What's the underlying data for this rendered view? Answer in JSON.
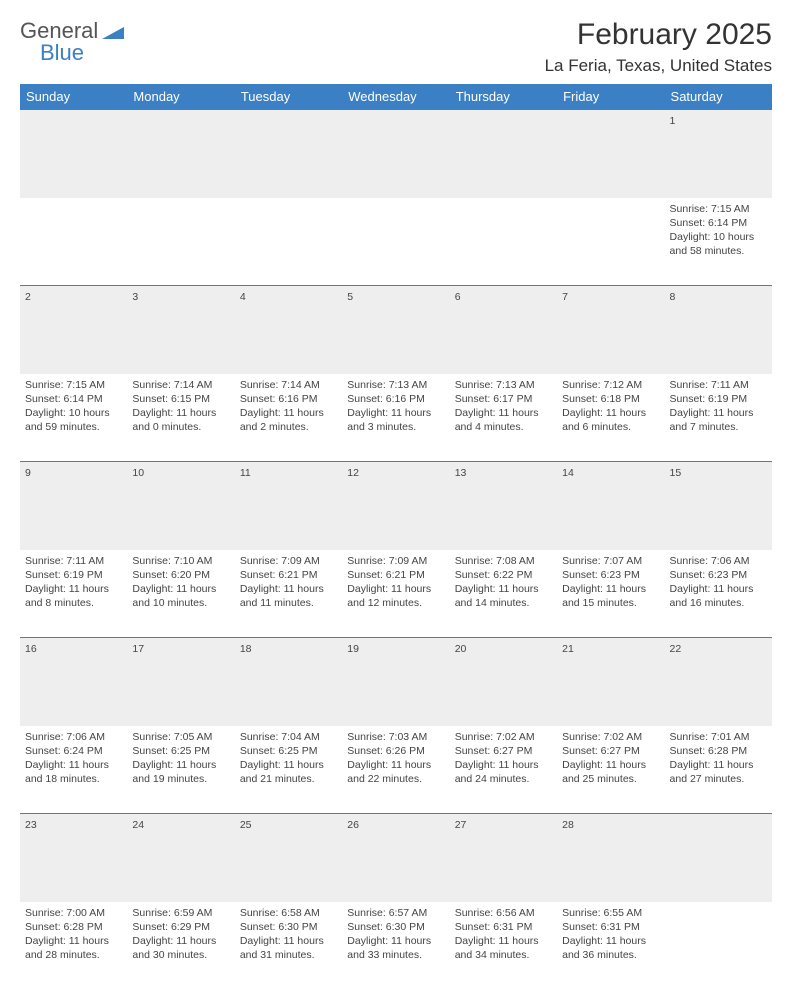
{
  "logo": {
    "text_gray": "General",
    "text_blue": "Blue",
    "triangle_color": "#3b7fc4"
  },
  "header": {
    "month": "February 2025",
    "location": "La Feria, Texas, United States"
  },
  "colors": {
    "header_bg": "#3b7fc4",
    "header_text": "#ffffff",
    "border": "#5a7a9c",
    "empty_bg": "#eeeeee"
  },
  "weekdays": [
    "Sunday",
    "Monday",
    "Tuesday",
    "Wednesday",
    "Thursday",
    "Friday",
    "Saturday"
  ],
  "weeks": [
    [
      null,
      null,
      null,
      null,
      null,
      null,
      {
        "day": "1",
        "sunrise": "Sunrise: 7:15 AM",
        "sunset": "Sunset: 6:14 PM",
        "daylight": "Daylight: 10 hours and 58 minutes."
      }
    ],
    [
      {
        "day": "2",
        "sunrise": "Sunrise: 7:15 AM",
        "sunset": "Sunset: 6:14 PM",
        "daylight": "Daylight: 10 hours and 59 minutes."
      },
      {
        "day": "3",
        "sunrise": "Sunrise: 7:14 AM",
        "sunset": "Sunset: 6:15 PM",
        "daylight": "Daylight: 11 hours and 0 minutes."
      },
      {
        "day": "4",
        "sunrise": "Sunrise: 7:14 AM",
        "sunset": "Sunset: 6:16 PM",
        "daylight": "Daylight: 11 hours and 2 minutes."
      },
      {
        "day": "5",
        "sunrise": "Sunrise: 7:13 AM",
        "sunset": "Sunset: 6:16 PM",
        "daylight": "Daylight: 11 hours and 3 minutes."
      },
      {
        "day": "6",
        "sunrise": "Sunrise: 7:13 AM",
        "sunset": "Sunset: 6:17 PM",
        "daylight": "Daylight: 11 hours and 4 minutes."
      },
      {
        "day": "7",
        "sunrise": "Sunrise: 7:12 AM",
        "sunset": "Sunset: 6:18 PM",
        "daylight": "Daylight: 11 hours and 6 minutes."
      },
      {
        "day": "8",
        "sunrise": "Sunrise: 7:11 AM",
        "sunset": "Sunset: 6:19 PM",
        "daylight": "Daylight: 11 hours and 7 minutes."
      }
    ],
    [
      {
        "day": "9",
        "sunrise": "Sunrise: 7:11 AM",
        "sunset": "Sunset: 6:19 PM",
        "daylight": "Daylight: 11 hours and 8 minutes."
      },
      {
        "day": "10",
        "sunrise": "Sunrise: 7:10 AM",
        "sunset": "Sunset: 6:20 PM",
        "daylight": "Daylight: 11 hours and 10 minutes."
      },
      {
        "day": "11",
        "sunrise": "Sunrise: 7:09 AM",
        "sunset": "Sunset: 6:21 PM",
        "daylight": "Daylight: 11 hours and 11 minutes."
      },
      {
        "day": "12",
        "sunrise": "Sunrise: 7:09 AM",
        "sunset": "Sunset: 6:21 PM",
        "daylight": "Daylight: 11 hours and 12 minutes."
      },
      {
        "day": "13",
        "sunrise": "Sunrise: 7:08 AM",
        "sunset": "Sunset: 6:22 PM",
        "daylight": "Daylight: 11 hours and 14 minutes."
      },
      {
        "day": "14",
        "sunrise": "Sunrise: 7:07 AM",
        "sunset": "Sunset: 6:23 PM",
        "daylight": "Daylight: 11 hours and 15 minutes."
      },
      {
        "day": "15",
        "sunrise": "Sunrise: 7:06 AM",
        "sunset": "Sunset: 6:23 PM",
        "daylight": "Daylight: 11 hours and 16 minutes."
      }
    ],
    [
      {
        "day": "16",
        "sunrise": "Sunrise: 7:06 AM",
        "sunset": "Sunset: 6:24 PM",
        "daylight": "Daylight: 11 hours and 18 minutes."
      },
      {
        "day": "17",
        "sunrise": "Sunrise: 7:05 AM",
        "sunset": "Sunset: 6:25 PM",
        "daylight": "Daylight: 11 hours and 19 minutes."
      },
      {
        "day": "18",
        "sunrise": "Sunrise: 7:04 AM",
        "sunset": "Sunset: 6:25 PM",
        "daylight": "Daylight: 11 hours and 21 minutes."
      },
      {
        "day": "19",
        "sunrise": "Sunrise: 7:03 AM",
        "sunset": "Sunset: 6:26 PM",
        "daylight": "Daylight: 11 hours and 22 minutes."
      },
      {
        "day": "20",
        "sunrise": "Sunrise: 7:02 AM",
        "sunset": "Sunset: 6:27 PM",
        "daylight": "Daylight: 11 hours and 24 minutes."
      },
      {
        "day": "21",
        "sunrise": "Sunrise: 7:02 AM",
        "sunset": "Sunset: 6:27 PM",
        "daylight": "Daylight: 11 hours and 25 minutes."
      },
      {
        "day": "22",
        "sunrise": "Sunrise: 7:01 AM",
        "sunset": "Sunset: 6:28 PM",
        "daylight": "Daylight: 11 hours and 27 minutes."
      }
    ],
    [
      {
        "day": "23",
        "sunrise": "Sunrise: 7:00 AM",
        "sunset": "Sunset: 6:28 PM",
        "daylight": "Daylight: 11 hours and 28 minutes."
      },
      {
        "day": "24",
        "sunrise": "Sunrise: 6:59 AM",
        "sunset": "Sunset: 6:29 PM",
        "daylight": "Daylight: 11 hours and 30 minutes."
      },
      {
        "day": "25",
        "sunrise": "Sunrise: 6:58 AM",
        "sunset": "Sunset: 6:30 PM",
        "daylight": "Daylight: 11 hours and 31 minutes."
      },
      {
        "day": "26",
        "sunrise": "Sunrise: 6:57 AM",
        "sunset": "Sunset: 6:30 PM",
        "daylight": "Daylight: 11 hours and 33 minutes."
      },
      {
        "day": "27",
        "sunrise": "Sunrise: 6:56 AM",
        "sunset": "Sunset: 6:31 PM",
        "daylight": "Daylight: 11 hours and 34 minutes."
      },
      {
        "day": "28",
        "sunrise": "Sunrise: 6:55 AM",
        "sunset": "Sunset: 6:31 PM",
        "daylight": "Daylight: 11 hours and 36 minutes."
      },
      null
    ]
  ]
}
